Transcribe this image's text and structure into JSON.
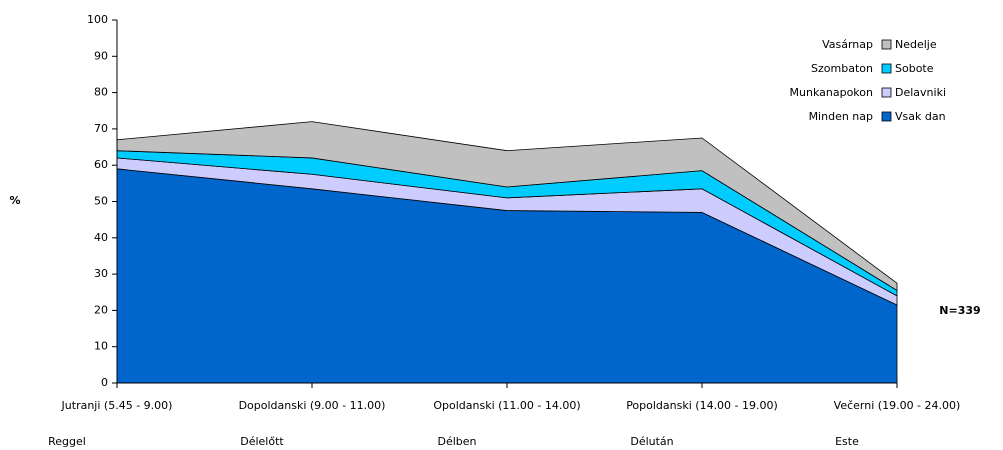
{
  "chart_data": {
    "type": "stacked_area",
    "y_label": "%",
    "annotation": "N=339",
    "categories": [
      "Jutranji (5.45 - 9.00)",
      "Dopoldanski (9.00 - 11.00)",
      "Opoldanski (11.00 - 14.00)",
      "Popoldanski (14.00 - 19.00)",
      "Večerni (19.00 - 24.00)"
    ],
    "categories_hu": [
      "Reggel",
      "Délelőtt",
      "Délben",
      "Délután",
      "Este"
    ],
    "series": [
      {
        "name": "Vsak dan",
        "name_hu": "Minden nap",
        "color": "#0066cc",
        "values": [
          59,
          53.5,
          47.5,
          47,
          21.5
        ]
      },
      {
        "name": "Delavniki",
        "name_hu": "Munkanapokon",
        "color": "#ccccff",
        "values": [
          3,
          4,
          3.5,
          6.5,
          2.5
        ]
      },
      {
        "name": "Sobote",
        "name_hu": "Szombaton",
        "color": "#00ccff",
        "values": [
          2,
          4.5,
          3,
          5,
          1.5
        ]
      },
      {
        "name": "Nedelje",
        "name_hu": "Vasárnap",
        "color": "#c0c0c0",
        "values": [
          3,
          10,
          10,
          9,
          2
        ]
      }
    ],
    "ylim": [
      0,
      100
    ],
    "yticks": [
      0,
      10,
      20,
      30,
      40,
      50,
      60,
      70,
      80,
      90,
      100
    ],
    "legend": "top-right"
  }
}
